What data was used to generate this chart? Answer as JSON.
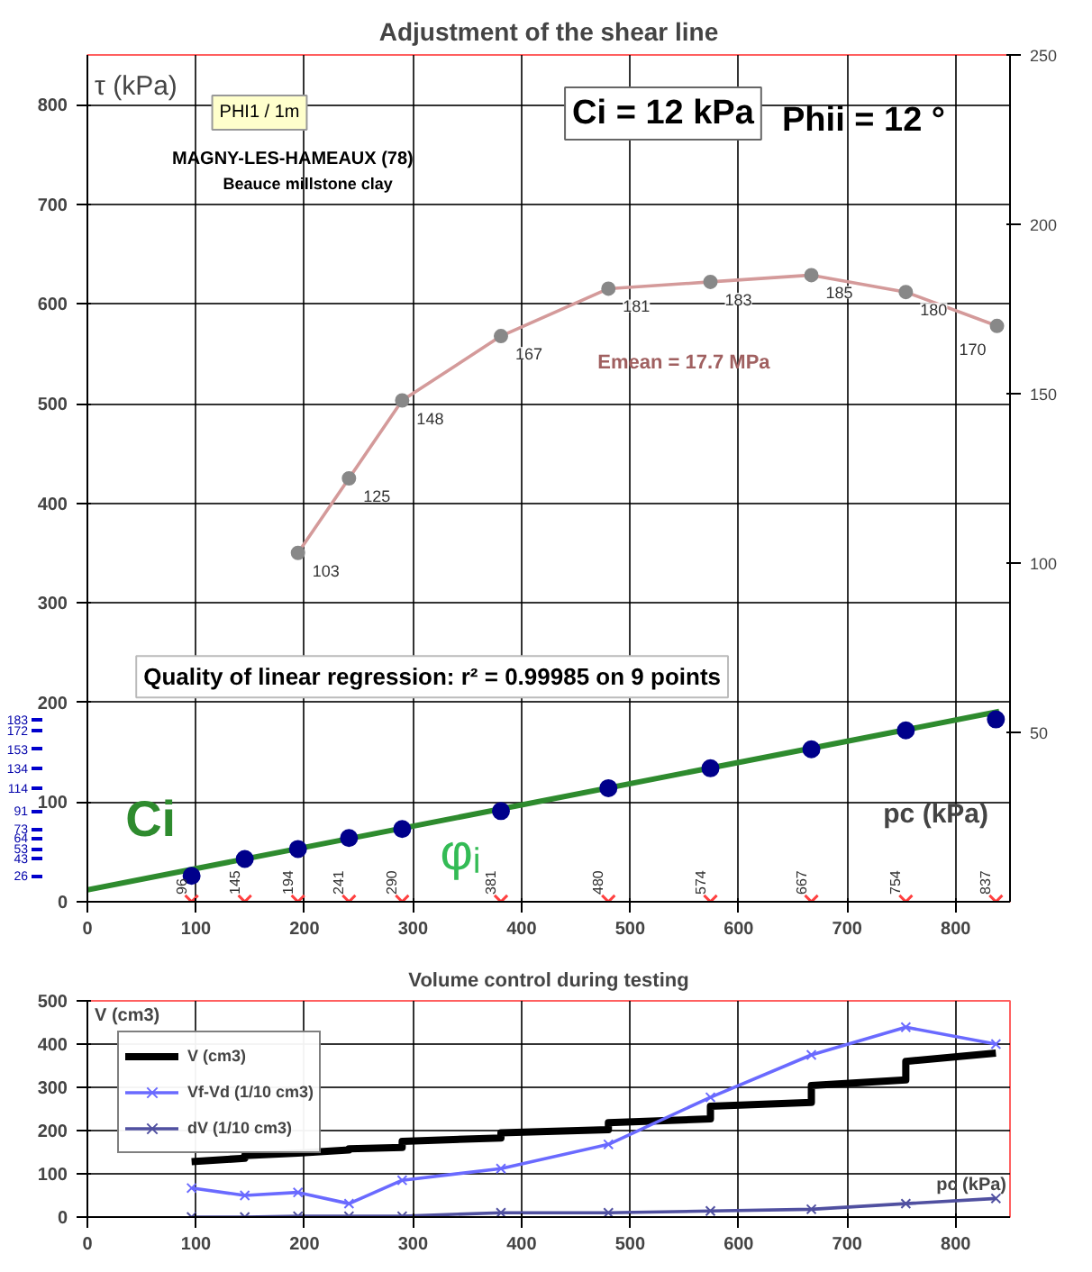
{
  "chart_data": [
    {
      "type": "scatter",
      "title": "Adjustment of the shear line",
      "xlabel": "pc (kPa)",
      "ylabel": "τ (kPa)",
      "xlim": [
        0,
        850
      ],
      "xticks": [
        0,
        100,
        200,
        300,
        400,
        500,
        600,
        700,
        800
      ],
      "ylim": [
        0,
        850
      ],
      "yticks": [
        0,
        100,
        200,
        300,
        400,
        500,
        600,
        700,
        800
      ],
      "y2lim": [
        0,
        250
      ],
      "y2ticks": [
        50,
        100,
        150,
        200,
        250
      ],
      "y3lim": [
        0,
        850
      ],
      "y3ticks": [
        26,
        43,
        53,
        64,
        73,
        91,
        114,
        134,
        153,
        172,
        183
      ],
      "grid": true,
      "legend": false,
      "series": [
        {
          "type": "line",
          "color": "#2e8b2e",
          "x": [
            0,
            840
          ],
          "values": [
            12,
            191
          ]
        },
        {
          "type": "scatter",
          "color": "#00008b",
          "marker": "circle",
          "x": [
            96,
            145,
            194,
            241,
            290,
            381,
            480,
            574,
            667,
            754,
            837
          ],
          "values": [
            26,
            43,
            53,
            64,
            73,
            91,
            114,
            134,
            153,
            172,
            183
          ]
        },
        {
          "type": "scatter",
          "color": "#ff4040",
          "marker": "cross",
          "x": [
            96,
            145,
            194,
            241,
            290,
            381,
            480,
            574,
            667,
            754,
            837
          ],
          "values": [
            0,
            0,
            0,
            0,
            0,
            0,
            0,
            0,
            0,
            0,
            0
          ]
        },
        {
          "type": "line",
          "axis": "y2",
          "color": "#d49a9a",
          "marker": "circle",
          "x": [
            194,
            241,
            290,
            381,
            480,
            574,
            667,
            754,
            838
          ],
          "values": [
            103,
            125,
            148,
            167,
            181,
            183,
            185,
            180,
            170
          ],
          "value_labels": [
            "103",
            "125",
            "148",
            "167",
            "181",
            "183",
            "185",
            "180",
            "170"
          ]
        }
      ],
      "annotations": [
        "PHI1 / 1m",
        "MAGNY-LES-HAMEAUX  (78)",
        "Beauce millstone clay",
        "Ci = 12 kPa",
        "Phii = 12 °",
        "Emean = 17.7 MPa",
        "Quality of linear regression: r² = 0.99985 on 9 points",
        "Ci",
        "φᵢ",
        {
          "text": "96",
          "x": 96,
          "y": 0
        },
        {
          "text": "145",
          "x": 145,
          "y": 0
        },
        {
          "text": "194",
          "x": 194,
          "y": 0
        },
        {
          "text": "241",
          "x": 241,
          "y": 0
        },
        {
          "text": "290",
          "x": 290,
          "y": 0
        },
        {
          "text": "381",
          "x": 381,
          "y": 0
        },
        {
          "text": "480",
          "x": 480,
          "y": 0
        },
        {
          "text": "574",
          "x": 574,
          "y": 0
        },
        {
          "text": "667",
          "x": 667,
          "y": 0
        },
        {
          "text": "754",
          "x": 754,
          "y": 0
        },
        {
          "text": "837",
          "x": 837,
          "y": 0
        }
      ]
    },
    {
      "type": "line",
      "title": "Volume control during testing",
      "xlabel": "pc (kPa)",
      "ylabel": "V (cm3)",
      "xlim": [
        0,
        850
      ],
      "xticks": [
        0,
        100,
        200,
        300,
        400,
        500,
        600,
        700,
        800
      ],
      "ylim": [
        0,
        500
      ],
      "yticks": [
        0,
        100,
        200,
        300,
        400,
        500
      ],
      "grid": true,
      "legend": "top left",
      "series": [
        {
          "name": "V (cm3)",
          "color": "#000000",
          "x": [
            96,
            145,
            145,
            194,
            241,
            241,
            290,
            290,
            381,
            381,
            480,
            480,
            574,
            574,
            667,
            667,
            754,
            754,
            837
          ],
          "values": [
            128,
            136,
            142,
            148,
            155,
            158,
            161,
            175,
            183,
            195,
            202,
            218,
            227,
            256,
            265,
            304,
            317,
            360,
            379
          ]
        },
        {
          "name": "Vf-Vd (1/10 cm3)",
          "color": "#6a6aff",
          "marker": "cross",
          "x": [
            96,
            145,
            194,
            241,
            290,
            381,
            480,
            574,
            667,
            754,
            837
          ],
          "values": [
            67,
            50,
            57,
            31,
            85,
            112,
            168,
            277,
            375,
            439,
            400
          ]
        },
        {
          "name": "dV (1/10 cm3)",
          "color": "#5050a0",
          "marker": "cross",
          "x": [
            96,
            145,
            194,
            241,
            290,
            381,
            480,
            574,
            667,
            754,
            837
          ],
          "values": [
            0,
            0,
            2,
            2,
            2,
            10,
            10,
            14,
            18,
            31,
            43
          ]
        }
      ]
    }
  ]
}
